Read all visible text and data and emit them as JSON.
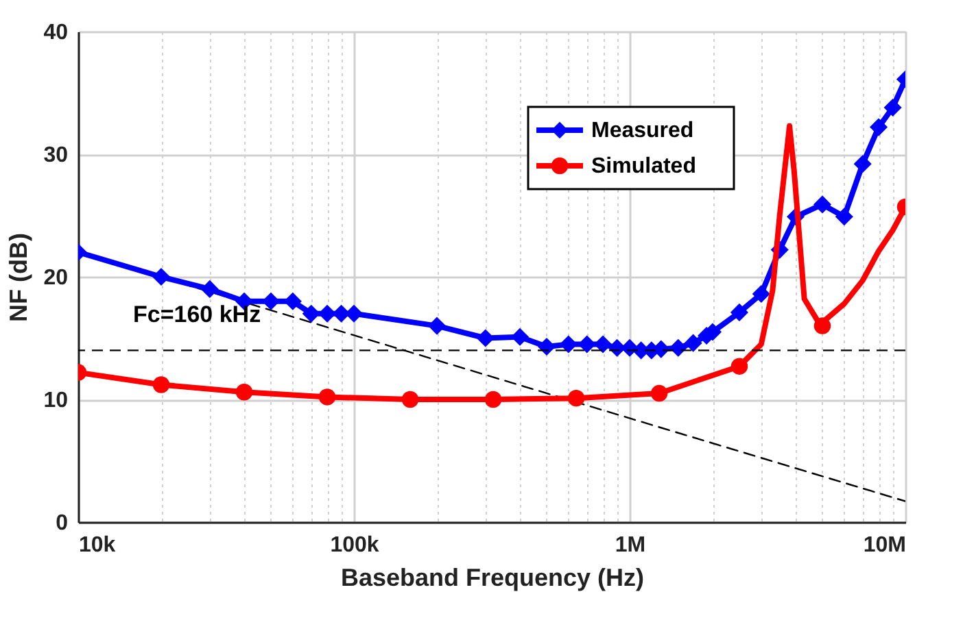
{
  "chart_data": {
    "type": "line",
    "xlabel": "Baseband Frequency (Hz)",
    "ylabel": "NF (dB)",
    "log": "x",
    "xlim": [
      10000,
      10000000
    ],
    "ylim": [
      0,
      40
    ],
    "xticks": [
      {
        "value": 10000,
        "label": "10k"
      },
      {
        "value": 20000,
        "label": null
      },
      {
        "value": 30000,
        "label": null
      },
      {
        "value": 40000,
        "label": null
      },
      {
        "value": 50000,
        "label": null
      },
      {
        "value": 60000,
        "label": null
      },
      {
        "value": 70000,
        "label": null
      },
      {
        "value": 80000,
        "label": null
      },
      {
        "value": 90000,
        "label": null
      },
      {
        "value": 100000,
        "label": "100k"
      },
      {
        "value": 200000,
        "label": null
      },
      {
        "value": 300000,
        "label": null
      },
      {
        "value": 400000,
        "label": null
      },
      {
        "value": 500000,
        "label": null
      },
      {
        "value": 600000,
        "label": null
      },
      {
        "value": 700000,
        "label": null
      },
      {
        "value": 800000,
        "label": null
      },
      {
        "value": 900000,
        "label": null
      },
      {
        "value": 1000000,
        "label": "1M"
      },
      {
        "value": 2000000,
        "label": null
      },
      {
        "value": 3000000,
        "label": null
      },
      {
        "value": 4000000,
        "label": null
      },
      {
        "value": 5000000,
        "label": null
      },
      {
        "value": 6000000,
        "label": null
      },
      {
        "value": 7000000,
        "label": null
      },
      {
        "value": 8000000,
        "label": null
      },
      {
        "value": 9000000,
        "label": null
      },
      {
        "value": 10000000,
        "label": "10M"
      }
    ],
    "yticks": [
      0,
      10,
      20,
      30,
      40
    ],
    "grid": true,
    "legend": "top right",
    "series": [
      {
        "color": "#000000",
        "marker": "none",
        "line_style": "dashed",
        "x": [
          10000,
          10000000
        ],
        "values": [
          22,
          1.7
        ]
      },
      {
        "name": "Measured",
        "color": "#0000ff",
        "marker": "diamond",
        "x": [
          10000,
          20000,
          30000,
          40000,
          50000,
          60000,
          70000,
          80000,
          90000,
          100000,
          200000,
          300000,
          400000,
          500000,
          600000,
          700000,
          800000,
          900000,
          1000000,
          1100000,
          1200000,
          1300000,
          1500000,
          1700000,
          1900000,
          2000000,
          2500000,
          3000000,
          3500000,
          4000000,
          5000000,
          6000000,
          7000000,
          8000000,
          9000000,
          10000000
        ],
        "values": [
          22,
          20,
          19,
          18,
          18,
          18,
          17,
          17,
          17,
          17,
          16,
          15,
          15.1,
          14.3,
          14.5,
          14.5,
          14.5,
          14.2,
          14.2,
          14,
          14,
          14.1,
          14.2,
          14.6,
          15.2,
          15.5,
          17.1,
          18.6,
          22.2,
          24.9,
          25.9,
          24.9,
          29.2,
          32.2,
          33.8,
          36.1
        ]
      },
      {
        "name": "Simulated",
        "color": "#ff0000",
        "marker": "circle",
        "x": [
          10000,
          20000,
          40000,
          80000,
          160000,
          320000,
          640000,
          1280000,
          2500000
        ],
        "values": [
          12.2,
          11.2,
          10.6,
          10.2,
          10.0,
          10.0,
          10.1,
          10.5,
          12.7
        ]
      },
      {
        "color": "#ff0000",
        "marker": "none",
        "x": [
          2500000,
          3000000,
          3300000,
          3500000,
          3800000,
          3950000,
          4300000,
          4900000,
          6000000,
          7000000,
          8000000,
          9000000,
          10000000
        ],
        "values": [
          12.7,
          14.5,
          18.9,
          25,
          32.3,
          28.6,
          18.2,
          16.1,
          17.8,
          19.7,
          22.1,
          23.8,
          25.7
        ]
      },
      {
        "type": "scatter",
        "color": "#ff0000",
        "marker": "circle",
        "x": [
          5000000,
          10000000
        ],
        "values": [
          16.0,
          25.7
        ]
      }
    ],
    "ref_lines": [
      {
        "axis": "y",
        "value": 14,
        "color": "#000000",
        "line_style": "dashed"
      }
    ],
    "annotations": [
      "Fc=160 kHz"
    ]
  }
}
